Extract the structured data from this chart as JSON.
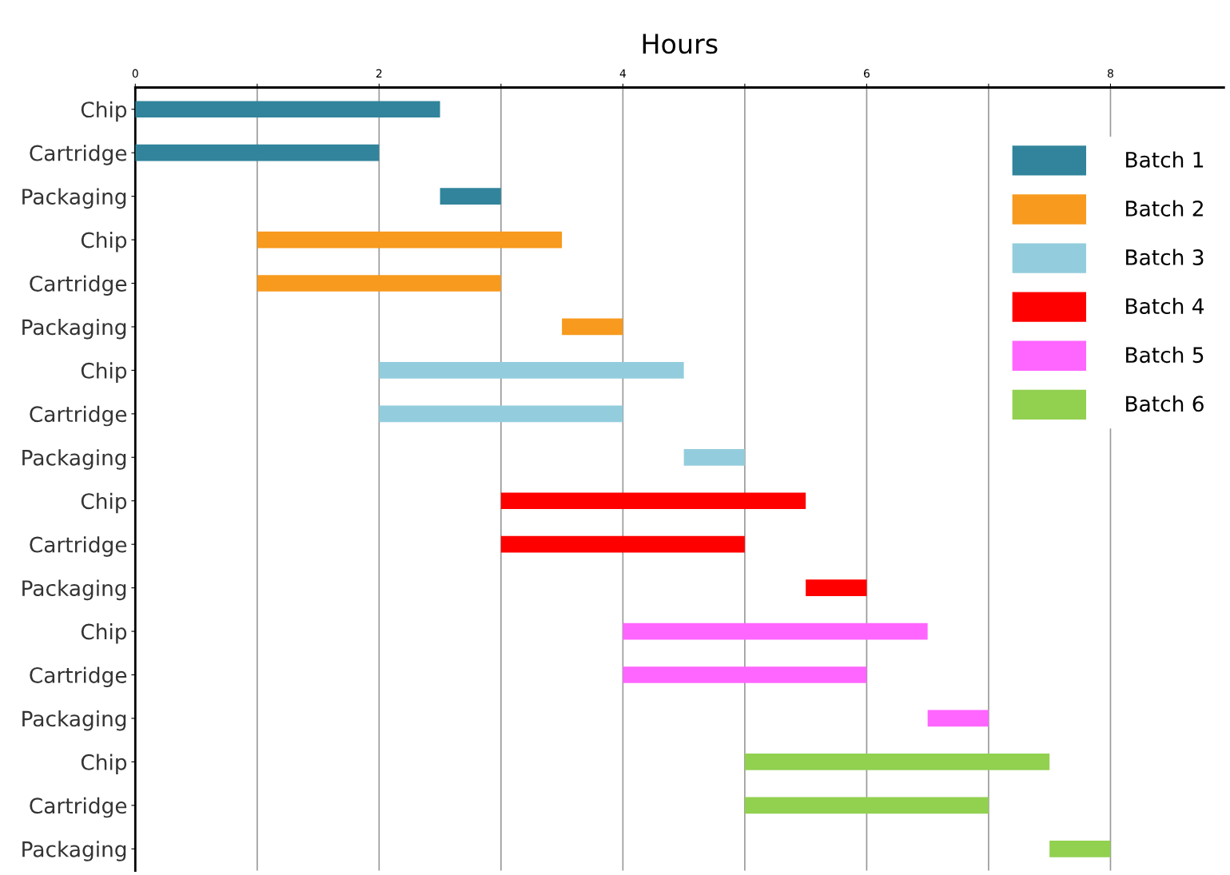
{
  "chart_data": {
    "type": "bar",
    "orientation": "horizontal",
    "xlabel": "Hours",
    "categories": [
      "Chip",
      "Cartridge",
      "Packaging",
      "Chip",
      "Cartridge",
      "Packaging",
      "Chip",
      "Cartridge",
      "Packaging",
      "Chip",
      "Cartridge",
      "Packaging",
      "Chip",
      "Cartridge",
      "Packaging",
      "Chip",
      "Cartridge",
      "Packaging"
    ],
    "series": [
      {
        "name": "Batch 1",
        "color": "#31849b",
        "base": [
          0,
          0,
          2.5,
          null,
          null,
          null,
          null,
          null,
          null,
          null,
          null,
          null,
          null,
          null,
          null,
          null,
          null,
          null
        ],
        "values": [
          2.5,
          2,
          0.5,
          null,
          null,
          null,
          null,
          null,
          null,
          null,
          null,
          null,
          null,
          null,
          null,
          null,
          null,
          null
        ]
      },
      {
        "name": "Batch 2",
        "color": "#f79a1e",
        "base": [
          null,
          null,
          null,
          1,
          1,
          3.5,
          null,
          null,
          null,
          null,
          null,
          null,
          null,
          null,
          null,
          null,
          null,
          null
        ],
        "values": [
          null,
          null,
          null,
          2.5,
          2,
          0.5,
          null,
          null,
          null,
          null,
          null,
          null,
          null,
          null,
          null,
          null,
          null,
          null
        ]
      },
      {
        "name": "Batch 3",
        "color": "#93cddd",
        "base": [
          null,
          null,
          null,
          null,
          null,
          null,
          2,
          2,
          4.5,
          null,
          null,
          null,
          null,
          null,
          null,
          null,
          null,
          null
        ],
        "values": [
          null,
          null,
          null,
          null,
          null,
          null,
          2.5,
          2,
          0.5,
          null,
          null,
          null,
          null,
          null,
          null,
          null,
          null,
          null
        ]
      },
      {
        "name": "Batch 4",
        "color": "#ff0000",
        "base": [
          null,
          null,
          null,
          null,
          null,
          null,
          null,
          null,
          null,
          3,
          3,
          5.5,
          null,
          null,
          null,
          null,
          null,
          null
        ],
        "values": [
          null,
          null,
          null,
          null,
          null,
          null,
          null,
          null,
          null,
          2.5,
          2,
          0.5,
          null,
          null,
          null,
          null,
          null,
          null
        ]
      },
      {
        "name": "Batch 5",
        "color": "#ff66ff",
        "base": [
          null,
          null,
          null,
          null,
          null,
          null,
          null,
          null,
          null,
          null,
          null,
          null,
          4,
          4,
          6.5,
          null,
          null,
          null
        ],
        "values": [
          null,
          null,
          null,
          null,
          null,
          null,
          null,
          null,
          null,
          null,
          null,
          null,
          2.5,
          2,
          0.5,
          null,
          null,
          null
        ]
      },
      {
        "name": "Batch 6",
        "color": "#92d050",
        "base": [
          null,
          null,
          null,
          null,
          null,
          null,
          null,
          null,
          null,
          null,
          null,
          null,
          null,
          null,
          null,
          5,
          5,
          7.5
        ],
        "values": [
          null,
          null,
          null,
          null,
          null,
          null,
          null,
          null,
          null,
          null,
          null,
          null,
          null,
          null,
          null,
          2.5,
          2,
          0.5
        ]
      }
    ],
    "xlim": [
      0,
      8.93
    ],
    "xticks": [
      0,
      {
        "value": 1,
        "label": null
      },
      2,
      {
        "value": 3,
        "label": null
      },
      4,
      {
        "value": 5,
        "label": null
      },
      6,
      {
        "value": 7,
        "label": null
      },
      8
    ],
    "grid": "x",
    "legend": "top right"
  }
}
